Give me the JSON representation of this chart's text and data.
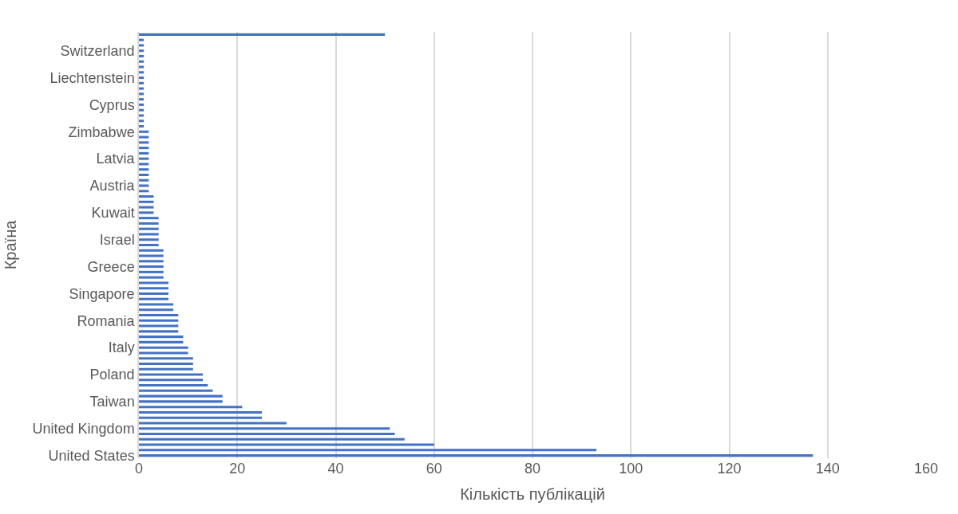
{
  "chart_data": {
    "type": "bar",
    "orientation": "horizontal",
    "categories": [
      null,
      null,
      null,
      "Switzerland",
      null,
      null,
      null,
      null,
      "Liechtenstein",
      null,
      null,
      null,
      null,
      "Cyprus",
      null,
      null,
      null,
      null,
      "Zimbabwe",
      null,
      null,
      null,
      null,
      "Latvia",
      null,
      null,
      null,
      null,
      "Austria",
      null,
      null,
      null,
      null,
      "Kuwait",
      null,
      null,
      null,
      null,
      "Israel",
      null,
      null,
      null,
      null,
      "Greece",
      null,
      null,
      null,
      null,
      "Singapore",
      null,
      null,
      null,
      null,
      "Romania",
      null,
      null,
      null,
      null,
      "Italy",
      null,
      null,
      null,
      null,
      "Poland",
      null,
      null,
      null,
      null,
      "Taiwan",
      null,
      null,
      null,
      null,
      "United Kingdom",
      null,
      null,
      null,
      null,
      "United States"
    ],
    "values": [
      50,
      1,
      1,
      1,
      1,
      1,
      1,
      1,
      1,
      1,
      1,
      1,
      1,
      1,
      1,
      1,
      1,
      1,
      2,
      2,
      2,
      2,
      2,
      2,
      2,
      2,
      2,
      2,
      2,
      2,
      3,
      3,
      3,
      3,
      4,
      4,
      4,
      4,
      4,
      4,
      5,
      5,
      5,
      5,
      5,
      5,
      6,
      6,
      6,
      6,
      7,
      7,
      8,
      8,
      8,
      8,
      9,
      9,
      10,
      10,
      11,
      11,
      11,
      13,
      13,
      14,
      15,
      17,
      17,
      21,
      25,
      25,
      30,
      51,
      52,
      54,
      60,
      93,
      137
    ],
    "color": "#4472c4",
    "xlim": [
      0,
      160
    ],
    "xticks": [
      0,
      20,
      40,
      60,
      80,
      100,
      120,
      140,
      160
    ],
    "xlabel": "Кількість публікацій",
    "ylabel": "Країна",
    "grid": "x"
  }
}
